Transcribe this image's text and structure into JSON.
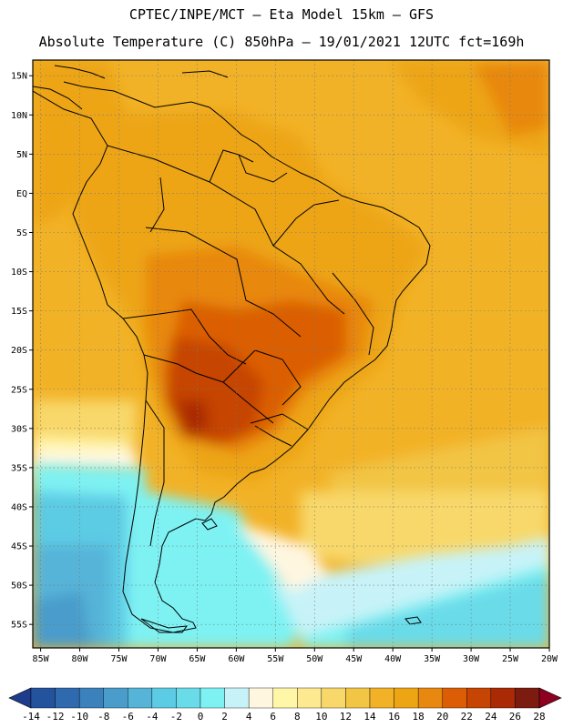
{
  "header": {
    "line1": "CPTEC/INPE/MCT –  Eta Model 15km – GFS",
    "line2": "Absolute Temperature (C) 850hPa – 19/01/2021 12UTC fct=169h"
  },
  "map": {
    "lon_range": [
      -86,
      -20
    ],
    "lat_range": [
      -58,
      17
    ],
    "lat_ticks": [
      {
        "value": 15,
        "label": "15N"
      },
      {
        "value": 10,
        "label": "10N"
      },
      {
        "value": 5,
        "label": "5N"
      },
      {
        "value": 0,
        "label": "EQ"
      },
      {
        "value": -5,
        "label": "5S"
      },
      {
        "value": -10,
        "label": "10S"
      },
      {
        "value": -15,
        "label": "15S"
      },
      {
        "value": -20,
        "label": "20S"
      },
      {
        "value": -25,
        "label": "25S"
      },
      {
        "value": -30,
        "label": "30S"
      },
      {
        "value": -35,
        "label": "35S"
      },
      {
        "value": -40,
        "label": "40S"
      },
      {
        "value": -45,
        "label": "45S"
      },
      {
        "value": -50,
        "label": "50S"
      },
      {
        "value": -55,
        "label": "55S"
      }
    ],
    "lon_ticks": [
      {
        "value": -85,
        "label": "85W"
      },
      {
        "value": -80,
        "label": "80W"
      },
      {
        "value": -75,
        "label": "75W"
      },
      {
        "value": -70,
        "label": "70W"
      },
      {
        "value": -65,
        "label": "65W"
      },
      {
        "value": -60,
        "label": "60W"
      },
      {
        "value": -55,
        "label": "55W"
      },
      {
        "value": -50,
        "label": "50W"
      },
      {
        "value": -45,
        "label": "45W"
      },
      {
        "value": -40,
        "label": "40W"
      },
      {
        "value": -35,
        "label": "35W"
      },
      {
        "value": -30,
        "label": "30W"
      },
      {
        "value": -25,
        "label": "25W"
      },
      {
        "value": -20,
        "label": "20W"
      }
    ]
  },
  "colorbar": {
    "levels": [
      "-14",
      "-12",
      "-10",
      "-8",
      "-6",
      "-4",
      "-2",
      "0",
      "2",
      "4",
      "6",
      "8",
      "10",
      "12",
      "14",
      "16",
      "18",
      "20",
      "22",
      "24",
      "26",
      "28"
    ],
    "colors": [
      "#1e3c8c",
      "#24539d",
      "#2f6aae",
      "#3b82bd",
      "#4a9ccb",
      "#56b4d8",
      "#5ccbe4",
      "#6adbe9",
      "#7ef2f3",
      "#c7f3f8",
      "#fff6e0",
      "#fff6a8",
      "#fde98f",
      "#f8d86b",
      "#f2c545",
      "#f2b227",
      "#eda514",
      "#e88810",
      "#db5e06",
      "#c64404",
      "#aa2a06",
      "#7c1c10",
      "#8e0020"
    ]
  }
}
